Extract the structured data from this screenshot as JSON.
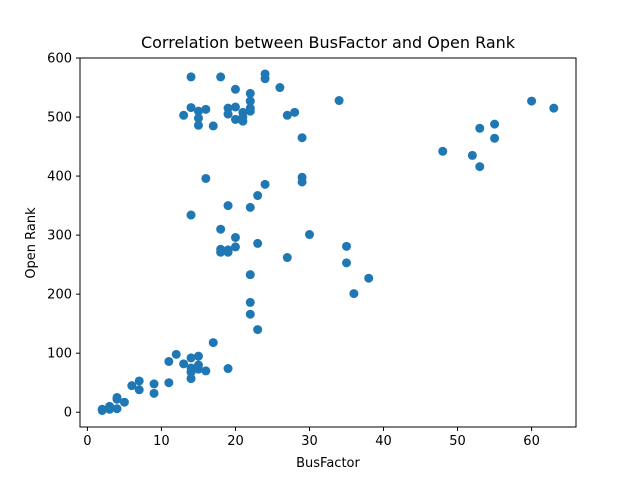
{
  "chart_data": {
    "type": "scatter",
    "title": "Correlation between BusFactor and Open Rank",
    "xlabel": "BusFactor",
    "ylabel": "Open Rank",
    "xlim": [
      -1,
      66
    ],
    "ylim": [
      -25,
      600
    ],
    "x_ticks": [
      "0",
      "10",
      "20",
      "30",
      "40",
      "50",
      "60"
    ],
    "y_ticks": [
      "0",
      "100",
      "200",
      "300",
      "400",
      "500",
      "600"
    ],
    "grid": false,
    "marker_color": "#1f77b4",
    "points": [
      {
        "x": 2,
        "y": 3
      },
      {
        "x": 2,
        "y": 5
      },
      {
        "x": 3,
        "y": 10
      },
      {
        "x": 3,
        "y": 5
      },
      {
        "x": 4,
        "y": 6
      },
      {
        "x": 4,
        "y": 25
      },
      {
        "x": 4,
        "y": 22
      },
      {
        "x": 5,
        "y": 17
      },
      {
        "x": 6,
        "y": 45
      },
      {
        "x": 7,
        "y": 53
      },
      {
        "x": 7,
        "y": 38
      },
      {
        "x": 9,
        "y": 48
      },
      {
        "x": 9,
        "y": 32
      },
      {
        "x": 11,
        "y": 50
      },
      {
        "x": 11,
        "y": 86
      },
      {
        "x": 12,
        "y": 98
      },
      {
        "x": 13,
        "y": 82
      },
      {
        "x": 14,
        "y": 92
      },
      {
        "x": 14,
        "y": 75
      },
      {
        "x": 14,
        "y": 68
      },
      {
        "x": 14,
        "y": 57
      },
      {
        "x": 15,
        "y": 95
      },
      {
        "x": 15,
        "y": 80
      },
      {
        "x": 15,
        "y": 73
      },
      {
        "x": 16,
        "y": 70
      },
      {
        "x": 17,
        "y": 118
      },
      {
        "x": 19,
        "y": 74
      },
      {
        "x": 14,
        "y": 568
      },
      {
        "x": 13,
        "y": 503
      },
      {
        "x": 14,
        "y": 516
      },
      {
        "x": 15,
        "y": 510
      },
      {
        "x": 15,
        "y": 498
      },
      {
        "x": 15,
        "y": 486
      },
      {
        "x": 16,
        "y": 513
      },
      {
        "x": 17,
        "y": 485
      },
      {
        "x": 18,
        "y": 568
      },
      {
        "x": 19,
        "y": 515
      },
      {
        "x": 19,
        "y": 505
      },
      {
        "x": 20,
        "y": 547
      },
      {
        "x": 20,
        "y": 517
      },
      {
        "x": 20,
        "y": 496
      },
      {
        "x": 21,
        "y": 508
      },
      {
        "x": 21,
        "y": 493
      },
      {
        "x": 21,
        "y": 500
      },
      {
        "x": 22,
        "y": 540
      },
      {
        "x": 22,
        "y": 527
      },
      {
        "x": 22,
        "y": 515
      },
      {
        "x": 22,
        "y": 510
      },
      {
        "x": 24,
        "y": 573
      },
      {
        "x": 24,
        "y": 565
      },
      {
        "x": 26,
        "y": 550
      },
      {
        "x": 27,
        "y": 503
      },
      {
        "x": 28,
        "y": 508
      },
      {
        "x": 29,
        "y": 465
      },
      {
        "x": 34,
        "y": 528
      },
      {
        "x": 16,
        "y": 396
      },
      {
        "x": 14,
        "y": 334
      },
      {
        "x": 18,
        "y": 310
      },
      {
        "x": 18,
        "y": 276
      },
      {
        "x": 18,
        "y": 271
      },
      {
        "x": 19,
        "y": 350
      },
      {
        "x": 19,
        "y": 275
      },
      {
        "x": 19,
        "y": 271
      },
      {
        "x": 20,
        "y": 296
      },
      {
        "x": 20,
        "y": 280
      },
      {
        "x": 22,
        "y": 347
      },
      {
        "x": 22,
        "y": 233
      },
      {
        "x": 22,
        "y": 186
      },
      {
        "x": 22,
        "y": 166
      },
      {
        "x": 23,
        "y": 367
      },
      {
        "x": 23,
        "y": 286
      },
      {
        "x": 23,
        "y": 140
      },
      {
        "x": 24,
        "y": 386
      },
      {
        "x": 27,
        "y": 262
      },
      {
        "x": 29,
        "y": 398
      },
      {
        "x": 29,
        "y": 390
      },
      {
        "x": 30,
        "y": 301
      },
      {
        "x": 35,
        "y": 281
      },
      {
        "x": 35,
        "y": 253
      },
      {
        "x": 36,
        "y": 201
      },
      {
        "x": 38,
        "y": 227
      },
      {
        "x": 48,
        "y": 442
      },
      {
        "x": 52,
        "y": 435
      },
      {
        "x": 53,
        "y": 481
      },
      {
        "x": 53,
        "y": 416
      },
      {
        "x": 55,
        "y": 488
      },
      {
        "x": 55,
        "y": 464
      },
      {
        "x": 60,
        "y": 527
      },
      {
        "x": 63,
        "y": 515
      }
    ]
  }
}
